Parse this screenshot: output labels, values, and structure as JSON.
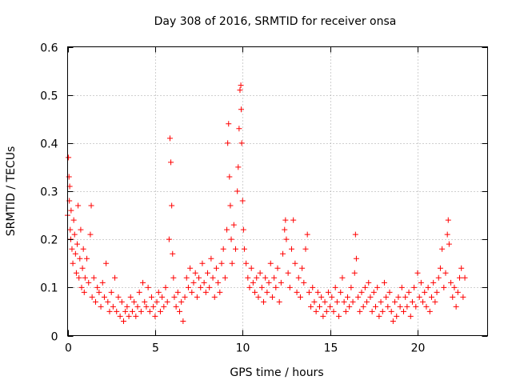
{
  "chart_data": {
    "type": "scatter",
    "title": "Day 308 of 2016, SRMTID for receiver onsa",
    "xlabel": "GPS time / hours",
    "ylabel": "SRMTID / TECUs",
    "xlim": [
      0,
      24
    ],
    "ylim": [
      0,
      0.6
    ],
    "xticks": [
      0,
      5,
      10,
      15,
      20
    ],
    "xtick_labels": [
      "0",
      "5",
      "10",
      "15",
      "20"
    ],
    "yticks": [
      0,
      0.1,
      0.2,
      0.3,
      0.4,
      0.5,
      0.6
    ],
    "ytick_labels": [
      "0",
      "0.1",
      "0.2",
      "0.3",
      "0.4",
      "0.5",
      "0.6"
    ],
    "grid": true,
    "marker": "+",
    "color": "#ff0000",
    "series": [
      {
        "name": "SRMTID",
        "points": [
          [
            0.0,
            0.25
          ],
          [
            0.05,
            0.37
          ],
          [
            0.08,
            0.33
          ],
          [
            0.1,
            0.28
          ],
          [
            0.12,
            0.31
          ],
          [
            0.15,
            0.22
          ],
          [
            0.18,
            0.2
          ],
          [
            0.2,
            0.26
          ],
          [
            0.25,
            0.18
          ],
          [
            0.3,
            0.15
          ],
          [
            0.35,
            0.24
          ],
          [
            0.4,
            0.21
          ],
          [
            0.45,
            0.17
          ],
          [
            0.5,
            0.13
          ],
          [
            0.55,
            0.19
          ],
          [
            0.6,
            0.27
          ],
          [
            0.65,
            0.12
          ],
          [
            0.7,
            0.16
          ],
          [
            0.75,
            0.22
          ],
          [
            0.8,
            0.1
          ],
          [
            0.85,
            0.14
          ],
          [
            0.9,
            0.18
          ],
          [
            0.95,
            0.09
          ],
          [
            1.0,
            0.12
          ],
          [
            1.1,
            0.16
          ],
          [
            1.2,
            0.11
          ],
          [
            1.3,
            0.21
          ],
          [
            1.35,
            0.27
          ],
          [
            1.4,
            0.08
          ],
          [
            1.5,
            0.12
          ],
          [
            1.6,
            0.07
          ],
          [
            1.7,
            0.1
          ],
          [
            1.8,
            0.09
          ],
          [
            1.9,
            0.06
          ],
          [
            2.0,
            0.11
          ],
          [
            2.1,
            0.08
          ],
          [
            2.2,
            0.15
          ],
          [
            2.3,
            0.07
          ],
          [
            2.4,
            0.05
          ],
          [
            2.5,
            0.09
          ],
          [
            2.6,
            0.06
          ],
          [
            2.7,
            0.12
          ],
          [
            2.8,
            0.05
          ],
          [
            2.9,
            0.08
          ],
          [
            3.0,
            0.04
          ],
          [
            3.1,
            0.07
          ],
          [
            3.2,
            0.03
          ],
          [
            3.3,
            0.05
          ],
          [
            3.4,
            0.06
          ],
          [
            3.5,
            0.04
          ],
          [
            3.6,
            0.08
          ],
          [
            3.7,
            0.05
          ],
          [
            3.8,
            0.07
          ],
          [
            3.9,
            0.04
          ],
          [
            4.0,
            0.06
          ],
          [
            4.1,
            0.09
          ],
          [
            4.2,
            0.05
          ],
          [
            4.3,
            0.11
          ],
          [
            4.4,
            0.07
          ],
          [
            4.5,
            0.06
          ],
          [
            4.6,
            0.1
          ],
          [
            4.7,
            0.05
          ],
          [
            4.8,
            0.08
          ],
          [
            4.9,
            0.06
          ],
          [
            5.0,
            0.04
          ],
          [
            5.1,
            0.07
          ],
          [
            5.2,
            0.09
          ],
          [
            5.3,
            0.05
          ],
          [
            5.4,
            0.08
          ],
          [
            5.5,
            0.06
          ],
          [
            5.6,
            0.1
          ],
          [
            5.7,
            0.07
          ],
          [
            5.8,
            0.2
          ],
          [
            5.85,
            0.41
          ],
          [
            5.9,
            0.36
          ],
          [
            5.95,
            0.27
          ],
          [
            6.0,
            0.17
          ],
          [
            6.05,
            0.12
          ],
          [
            6.1,
            0.08
          ],
          [
            6.2,
            0.06
          ],
          [
            6.3,
            0.09
          ],
          [
            6.4,
            0.05
          ],
          [
            6.5,
            0.07
          ],
          [
            6.6,
            0.03
          ],
          [
            6.7,
            0.08
          ],
          [
            6.8,
            0.12
          ],
          [
            6.9,
            0.1
          ],
          [
            7.0,
            0.14
          ],
          [
            7.1,
            0.09
          ],
          [
            7.2,
            0.11
          ],
          [
            7.3,
            0.13
          ],
          [
            7.4,
            0.08
          ],
          [
            7.5,
            0.12
          ],
          [
            7.6,
            0.1
          ],
          [
            7.7,
            0.15
          ],
          [
            7.8,
            0.11
          ],
          [
            7.9,
            0.09
          ],
          [
            8.0,
            0.13
          ],
          [
            8.1,
            0.1
          ],
          [
            8.2,
            0.16
          ],
          [
            8.3,
            0.12
          ],
          [
            8.4,
            0.08
          ],
          [
            8.5,
            0.14
          ],
          [
            8.6,
            0.11
          ],
          [
            8.7,
            0.09
          ],
          [
            8.8,
            0.15
          ],
          [
            8.9,
            0.18
          ],
          [
            9.0,
            0.12
          ],
          [
            9.1,
            0.22
          ],
          [
            9.15,
            0.4
          ],
          [
            9.2,
            0.44
          ],
          [
            9.25,
            0.33
          ],
          [
            9.3,
            0.27
          ],
          [
            9.35,
            0.2
          ],
          [
            9.4,
            0.15
          ],
          [
            9.5,
            0.23
          ],
          [
            9.6,
            0.18
          ],
          [
            9.7,
            0.3
          ],
          [
            9.75,
            0.35
          ],
          [
            9.8,
            0.43
          ],
          [
            9.85,
            0.51
          ],
          [
            9.9,
            0.52
          ],
          [
            9.92,
            0.47
          ],
          [
            9.95,
            0.4
          ],
          [
            10.0,
            0.28
          ],
          [
            10.05,
            0.22
          ],
          [
            10.1,
            0.18
          ],
          [
            10.2,
            0.15
          ],
          [
            10.3,
            0.12
          ],
          [
            10.4,
            0.1
          ],
          [
            10.5,
            0.14
          ],
          [
            10.6,
            0.11
          ],
          [
            10.7,
            0.09
          ],
          [
            10.8,
            0.12
          ],
          [
            10.9,
            0.08
          ],
          [
            11.0,
            0.13
          ],
          [
            11.1,
            0.1
          ],
          [
            11.2,
            0.07
          ],
          [
            11.3,
            0.12
          ],
          [
            11.4,
            0.09
          ],
          [
            11.5,
            0.11
          ],
          [
            11.6,
            0.15
          ],
          [
            11.7,
            0.08
          ],
          [
            11.8,
            0.12
          ],
          [
            11.9,
            0.1
          ],
          [
            12.0,
            0.14
          ],
          [
            12.1,
            0.07
          ],
          [
            12.2,
            0.11
          ],
          [
            12.3,
            0.17
          ],
          [
            12.4,
            0.22
          ],
          [
            12.45,
            0.24
          ],
          [
            12.5,
            0.2
          ],
          [
            12.6,
            0.13
          ],
          [
            12.7,
            0.1
          ],
          [
            12.8,
            0.18
          ],
          [
            12.9,
            0.24
          ],
          [
            13.0,
            0.15
          ],
          [
            13.1,
            0.09
          ],
          [
            13.2,
            0.12
          ],
          [
            13.3,
            0.08
          ],
          [
            13.4,
            0.14
          ],
          [
            13.5,
            0.11
          ],
          [
            13.6,
            0.18
          ],
          [
            13.7,
            0.21
          ],
          [
            13.8,
            0.09
          ],
          [
            13.9,
            0.06
          ],
          [
            14.0,
            0.1
          ],
          [
            14.1,
            0.07
          ],
          [
            14.2,
            0.05
          ],
          [
            14.3,
            0.09
          ],
          [
            14.4,
            0.06
          ],
          [
            14.5,
            0.08
          ],
          [
            14.6,
            0.04
          ],
          [
            14.7,
            0.07
          ],
          [
            14.8,
            0.05
          ],
          [
            14.9,
            0.09
          ],
          [
            15.0,
            0.06
          ],
          [
            15.1,
            0.08
          ],
          [
            15.2,
            0.05
          ],
          [
            15.3,
            0.1
          ],
          [
            15.4,
            0.07
          ],
          [
            15.5,
            0.04
          ],
          [
            15.6,
            0.09
          ],
          [
            15.7,
            0.12
          ],
          [
            15.8,
            0.07
          ],
          [
            15.9,
            0.05
          ],
          [
            16.0,
            0.08
          ],
          [
            16.1,
            0.06
          ],
          [
            16.2,
            0.1
          ],
          [
            16.3,
            0.07
          ],
          [
            16.4,
            0.13
          ],
          [
            16.45,
            0.21
          ],
          [
            16.5,
            0.16
          ],
          [
            16.6,
            0.08
          ],
          [
            16.7,
            0.05
          ],
          [
            16.8,
            0.09
          ],
          [
            16.9,
            0.06
          ],
          [
            17.0,
            0.1
          ],
          [
            17.1,
            0.07
          ],
          [
            17.2,
            0.11
          ],
          [
            17.3,
            0.08
          ],
          [
            17.4,
            0.05
          ],
          [
            17.5,
            0.09
          ],
          [
            17.6,
            0.06
          ],
          [
            17.7,
            0.1
          ],
          [
            17.8,
            0.04
          ],
          [
            17.9,
            0.07
          ],
          [
            18.0,
            0.05
          ],
          [
            18.1,
            0.11
          ],
          [
            18.2,
            0.08
          ],
          [
            18.3,
            0.06
          ],
          [
            18.4,
            0.09
          ],
          [
            18.5,
            0.05
          ],
          [
            18.6,
            0.03
          ],
          [
            18.7,
            0.07
          ],
          [
            18.8,
            0.04
          ],
          [
            18.9,
            0.08
          ],
          [
            19.0,
            0.06
          ],
          [
            19.1,
            0.1
          ],
          [
            19.2,
            0.05
          ],
          [
            19.3,
            0.08
          ],
          [
            19.4,
            0.06
          ],
          [
            19.5,
            0.09
          ],
          [
            19.6,
            0.04
          ],
          [
            19.7,
            0.07
          ],
          [
            19.8,
            0.1
          ],
          [
            19.9,
            0.06
          ],
          [
            20.0,
            0.13
          ],
          [
            20.1,
            0.08
          ],
          [
            20.2,
            0.11
          ],
          [
            20.3,
            0.07
          ],
          [
            20.4,
            0.09
          ],
          [
            20.5,
            0.06
          ],
          [
            20.6,
            0.1
          ],
          [
            20.7,
            0.05
          ],
          [
            20.8,
            0.08
          ],
          [
            20.9,
            0.11
          ],
          [
            21.0,
            0.07
          ],
          [
            21.1,
            0.09
          ],
          [
            21.2,
            0.12
          ],
          [
            21.3,
            0.14
          ],
          [
            21.4,
            0.18
          ],
          [
            21.5,
            0.1
          ],
          [
            21.6,
            0.13
          ],
          [
            21.7,
            0.21
          ],
          [
            21.75,
            0.24
          ],
          [
            21.8,
            0.19
          ],
          [
            21.9,
            0.11
          ],
          [
            22.0,
            0.08
          ],
          [
            22.1,
            0.1
          ],
          [
            22.2,
            0.06
          ],
          [
            22.3,
            0.09
          ],
          [
            22.4,
            0.12
          ],
          [
            22.5,
            0.14
          ],
          [
            22.6,
            0.08
          ],
          [
            22.7,
            0.12
          ]
        ]
      }
    ]
  }
}
